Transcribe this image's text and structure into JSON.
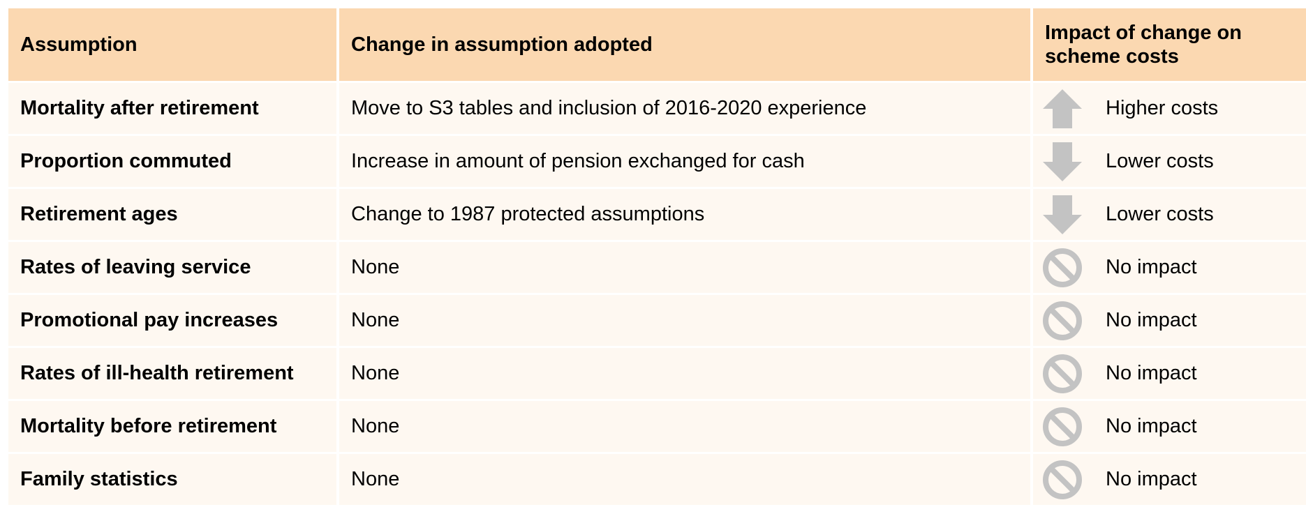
{
  "table": {
    "header": [
      "Assumption",
      "Change in assumption adopted",
      "Impact of change on scheme costs"
    ],
    "rows": [
      [
        "Mortality after retirement",
        "Move to S3 tables and inclusion of 2016-2020 experience",
        "Higher costs"
      ],
      [
        "Proportion commuted",
        "Increase in amount of pension exchanged for cash",
        "Lower costs"
      ],
      [
        "Retirement ages",
        "Change to 1987 protected assumptions",
        "Lower costs"
      ],
      [
        "Rates of leaving service",
        "None",
        "No impact"
      ],
      [
        "Promotional pay increases",
        "None",
        "No impact"
      ],
      [
        "Rates of ill-health retirement",
        "None",
        "No impact"
      ],
      [
        "Mortality before retirement",
        "None",
        "No impact"
      ],
      [
        "Family statistics",
        "None",
        "No impact"
      ]
    ]
  }
}
